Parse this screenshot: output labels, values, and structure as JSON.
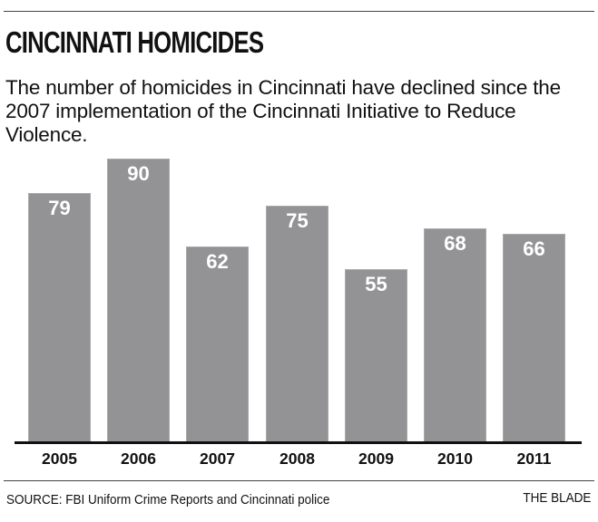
{
  "header": {
    "title": "CINCINNATI HOMICIDES",
    "subtitle": "The number of homicides in Cincinnati have declined since the 2007 implementation of the Cincinnati Initiative to Reduce Violence."
  },
  "footer": {
    "source": "SOURCE: FBI Uniform Crime Reports and Cincinnati police",
    "credit": "THE BLADE"
  },
  "colors": {
    "bar": "#939396",
    "bar_label": "#ffffff",
    "axis": "#111111"
  },
  "chart_data": {
    "type": "bar",
    "title": "CINCINNATI HOMICIDES",
    "subtitle": "The number of homicides in Cincinnati have declined since the 2007 implementation of the Cincinnati Initiative to Reduce Violence.",
    "categories": [
      "2005",
      "2006",
      "2007",
      "2008",
      "2009",
      "2010",
      "2011"
    ],
    "values": [
      79,
      90,
      62,
      75,
      55,
      68,
      66
    ],
    "xlabel": "",
    "ylabel": "",
    "ylim": [
      0,
      90
    ],
    "grid": false,
    "legend": null,
    "data_labels": true,
    "source": "SOURCE: FBI Uniform Crime Reports and Cincinnati police"
  }
}
